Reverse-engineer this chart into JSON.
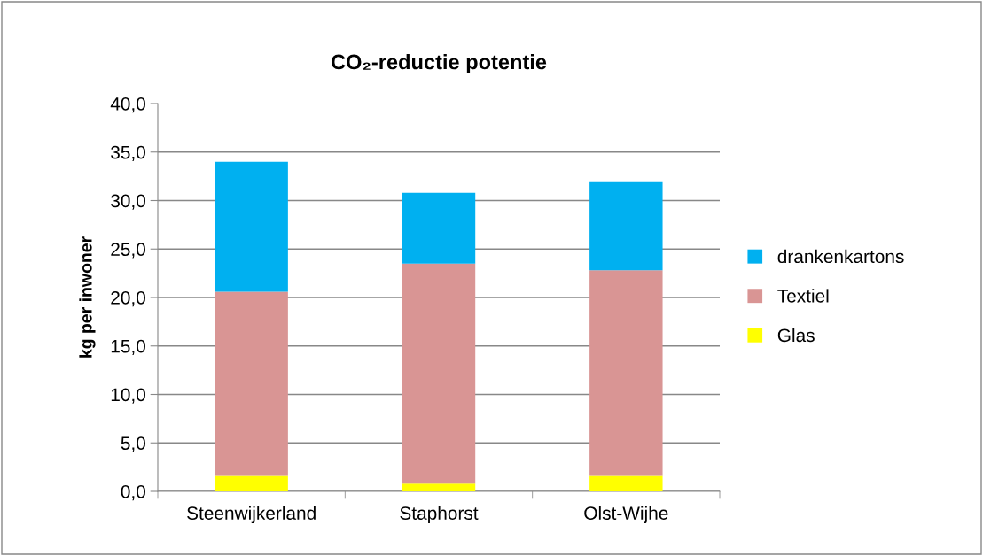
{
  "chart_data": {
    "type": "bar",
    "title": "CO₂-reductie potentie",
    "ylabel": "kg per inwoner",
    "categories": [
      "Steenwijkerland",
      "Staphorst",
      "Olst-Wijhe"
    ],
    "stacked": true,
    "series": [
      {
        "name": "Glas",
        "color": "#ffff00",
        "values": [
          1.6,
          0.8,
          1.6
        ]
      },
      {
        "name": "Textiel",
        "color": "#d99594",
        "values": [
          19.0,
          22.7,
          21.2
        ]
      },
      {
        "name": "drankenkartons",
        "color": "#00b0f0",
        "values": [
          13.4,
          7.3,
          9.1
        ]
      }
    ],
    "ylim": [
      0,
      40
    ],
    "yticks": [
      {
        "value": 0,
        "label": "0,0"
      },
      {
        "value": 5,
        "label": "5,0"
      },
      {
        "value": 10,
        "label": "10,0"
      },
      {
        "value": 15,
        "label": "15,0"
      },
      {
        "value": 20,
        "label": "20,0"
      },
      {
        "value": 25,
        "label": "25,0"
      },
      {
        "value": 30,
        "label": "30,0"
      },
      {
        "value": 35,
        "label": "35,0"
      },
      {
        "value": 40,
        "label": "40,0"
      }
    ],
    "grid": "y",
    "legend": "right"
  }
}
